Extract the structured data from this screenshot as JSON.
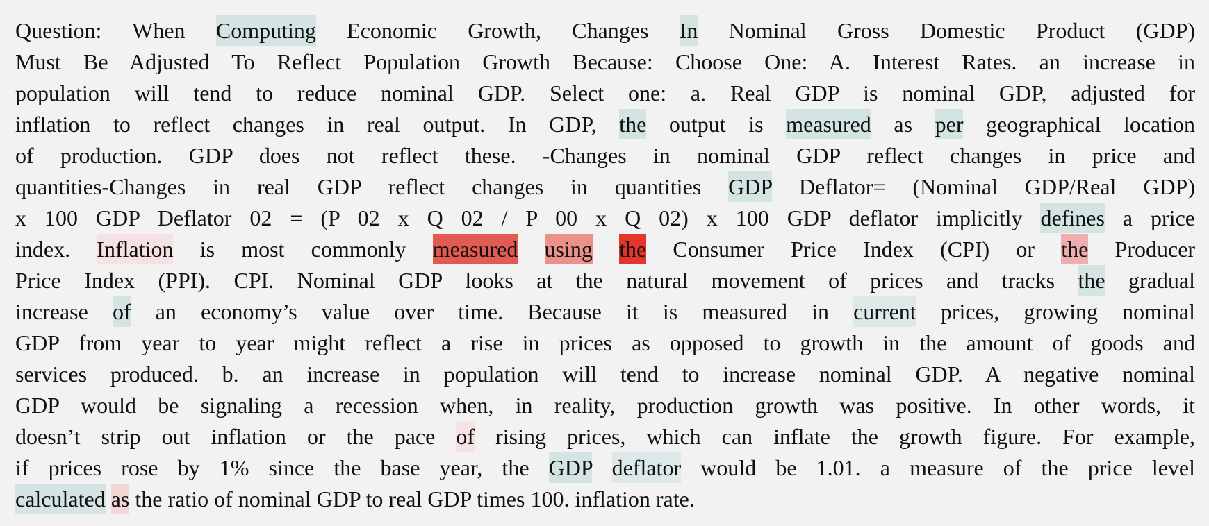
{
  "lines": [
    [
      {
        "text": "Question: When "
      },
      {
        "text": "Computing",
        "color": "#d3e4e2"
      },
      {
        "text": " Economic Growth,  Changes "
      },
      {
        "text": "In",
        "color": "#d3e4e2"
      },
      {
        "text": " Nominal Gross Domestic Product (GDP)"
      }
    ],
    [
      {
        "text": "Must Be Adjusted To Reflect Population Growth Because: Choose One: A. Interest Rates. an increase in"
      }
    ],
    [
      {
        "text": "population will tend to reduce nominal GDP. Select one: a. Real GDP is nominal GDP, adjusted for"
      }
    ],
    [
      {
        "text": "inflation to reflect changes in real output. In GDP, "
      },
      {
        "text": "the",
        "color": "#d3e4e2"
      },
      {
        "text": " output is "
      },
      {
        "text": "measured",
        "color": "#d3e4e2"
      },
      {
        "text": " as "
      },
      {
        "text": "per",
        "color": "#d3e4e2"
      },
      {
        "text": " geographical location"
      }
    ],
    [
      {
        "text": "of production.  GDP does not reflect these. -Changes in nominal GDP reflect changes in price and"
      }
    ],
    [
      {
        "text": "quantities-Changes in real GDP reflect changes in quantities "
      },
      {
        "text": "GDP",
        "color": "#d3e4e2"
      },
      {
        "text": " Deflator= (Nominal GDP/Real GDP)"
      }
    ],
    [
      {
        "text": "x 100 GDP Deflator 02 = (P 02 x Q 02 / P 00 x Q 02) x 100 GDP deflator implicitly "
      },
      {
        "text": "defines",
        "color": "#d3e4e2"
      },
      {
        "text": " a price"
      }
    ],
    [
      {
        "text": "index. "
      },
      {
        "text": "Inflation",
        "color": "#f6e2e2"
      },
      {
        "text": " is most commonly "
      },
      {
        "text": "measured",
        "color": "#e25a52"
      },
      {
        "text": " "
      },
      {
        "text": "using",
        "color": "#ec908b"
      },
      {
        "text": " "
      },
      {
        "text": "the",
        "color": "#e6362c"
      },
      {
        "text": " Consumer Price Index (CPI) or "
      },
      {
        "text": "the",
        "color": "#efaeae"
      },
      {
        "text": " Producer"
      }
    ],
    [
      {
        "text": "Price Index (PPI). CPI. Nominal GDP looks at the natural movement of prices and tracks "
      },
      {
        "text": "the",
        "color": "#d3e4e2"
      },
      {
        "text": " gradual"
      }
    ],
    [
      {
        "text": "increase "
      },
      {
        "text": "of",
        "color": "#d3e4e2"
      },
      {
        "text": " an economy’s value over time. Because it is measured in "
      },
      {
        "text": "current",
        "color": "#dde9e8"
      },
      {
        "text": " prices, growing nominal"
      }
    ],
    [
      {
        "text": "GDP from year to year might reflect a rise in prices as opposed to growth in the amount of goods and"
      }
    ],
    [
      {
        "text": "services produced.  b. an increase in population will tend to increase nominal GDP. A negative nominal"
      }
    ],
    [
      {
        "text": "GDP would be signaling a recession when, in reality, production growth was positive. In other words, it"
      }
    ],
    [
      {
        "text": "doesn’t strip out inflation or the pace "
      },
      {
        "text": "of",
        "color": "#f6e2e2"
      },
      {
        "text": " rising prices, which can inflate the growth figure. For example,"
      }
    ],
    [
      {
        "text": "if prices rose by 1% since the base year, the "
      },
      {
        "text": "GDP",
        "color": "#d3e4e2"
      },
      {
        "text": " "
      },
      {
        "text": "deflator",
        "color": "#dde9e8"
      },
      {
        "text": " would be 1.01. a measure of the price level"
      }
    ],
    [
      {
        "text": "calculated",
        "color": "#d3e4e2"
      },
      {
        "text": " "
      },
      {
        "text": "as",
        "color": "#f3d6d6"
      },
      {
        "text": " the ratio of nominal GDP to real GDP times 100. inflation rate."
      }
    ]
  ]
}
